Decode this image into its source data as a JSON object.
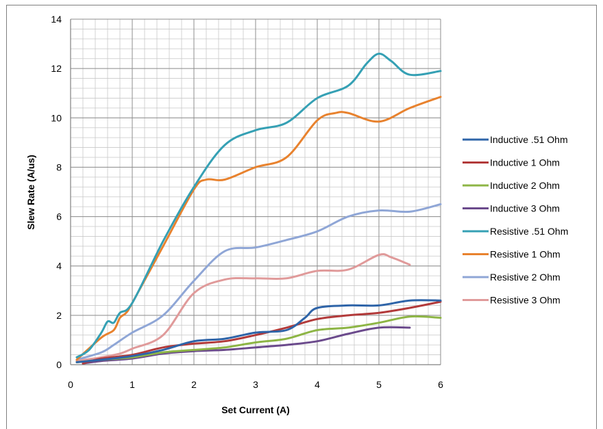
{
  "chart_data": {
    "type": "line",
    "title": "",
    "xlabel": "Set Current (A)",
    "ylabel": "Slew Rate (A/us)",
    "xlim": [
      0,
      6
    ],
    "ylim": [
      0,
      14
    ],
    "x_ticks": [
      "0",
      "1",
      "2",
      "3",
      "4",
      "5",
      "6"
    ],
    "y_ticks": [
      "0",
      "2",
      "4",
      "6",
      "8",
      "10",
      "12",
      "14"
    ],
    "grid": true,
    "legend_position": "right",
    "series": [
      {
        "name": "Inductive .51 Ohm",
        "color": "#2e64a8",
        "points": [
          [
            0.1,
            0.1
          ],
          [
            0.5,
            0.2
          ],
          [
            1,
            0.35
          ],
          [
            1.5,
            0.6
          ],
          [
            2,
            0.95
          ],
          [
            2.5,
            1.05
          ],
          [
            3,
            1.3
          ],
          [
            3.5,
            1.4
          ],
          [
            3.8,
            1.9
          ],
          [
            4,
            2.3
          ],
          [
            4.5,
            2.4
          ],
          [
            5,
            2.4
          ],
          [
            5.5,
            2.6
          ],
          [
            6,
            2.6
          ]
        ]
      },
      {
        "name": "Inductive 1 Ohm",
        "color": "#b23a3a",
        "points": [
          [
            0.2,
            0.05
          ],
          [
            0.5,
            0.25
          ],
          [
            1,
            0.4
          ],
          [
            1.5,
            0.7
          ],
          [
            2,
            0.85
          ],
          [
            2.5,
            0.95
          ],
          [
            3,
            1.2
          ],
          [
            3.5,
            1.5
          ],
          [
            4,
            1.85
          ],
          [
            4.5,
            2.0
          ],
          [
            5,
            2.1
          ],
          [
            5.5,
            2.3
          ],
          [
            6,
            2.55
          ]
        ]
      },
      {
        "name": "Inductive 2 Ohm",
        "color": "#8db545",
        "points": [
          [
            0.1,
            0.1
          ],
          [
            0.5,
            0.2
          ],
          [
            1,
            0.3
          ],
          [
            1.5,
            0.5
          ],
          [
            2,
            0.6
          ],
          [
            2.5,
            0.7
          ],
          [
            3,
            0.9
          ],
          [
            3.5,
            1.05
          ],
          [
            4,
            1.4
          ],
          [
            4.5,
            1.5
          ],
          [
            5,
            1.7
          ],
          [
            5.5,
            1.95
          ],
          [
            6,
            1.9
          ]
        ]
      },
      {
        "name": "Inductive 3 Ohm",
        "color": "#6b4a8c",
        "points": [
          [
            0.2,
            0.05
          ],
          [
            0.5,
            0.15
          ],
          [
            1,
            0.25
          ],
          [
            1.5,
            0.45
          ],
          [
            2,
            0.55
          ],
          [
            2.5,
            0.6
          ],
          [
            3,
            0.7
          ],
          [
            3.5,
            0.8
          ],
          [
            4,
            0.95
          ],
          [
            4.5,
            1.25
          ],
          [
            5,
            1.5
          ],
          [
            5.5,
            1.5
          ]
        ]
      },
      {
        "name": "Resistive .51 Ohm",
        "color": "#35a0b4",
        "points": [
          [
            0.1,
            0.3
          ],
          [
            0.3,
            0.6
          ],
          [
            0.5,
            1.3
          ],
          [
            0.6,
            1.75
          ],
          [
            0.7,
            1.7
          ],
          [
            0.8,
            2.1
          ],
          [
            1,
            2.5
          ],
          [
            1.5,
            5.0
          ],
          [
            2,
            7.2
          ],
          [
            2.5,
            8.9
          ],
          [
            3,
            9.5
          ],
          [
            3.5,
            9.8
          ],
          [
            4,
            10.8
          ],
          [
            4.5,
            11.3
          ],
          [
            4.8,
            12.2
          ],
          [
            5,
            12.6
          ],
          [
            5.2,
            12.3
          ],
          [
            5.5,
            11.75
          ],
          [
            6,
            11.9
          ]
        ]
      },
      {
        "name": "Resistive 1 Ohm",
        "color": "#e8822e",
        "points": [
          [
            0.1,
            0.2
          ],
          [
            0.5,
            1.1
          ],
          [
            0.7,
            1.4
          ],
          [
            0.8,
            1.9
          ],
          [
            0.9,
            2.1
          ],
          [
            1,
            2.5
          ],
          [
            1.5,
            4.8
          ],
          [
            2,
            7.1
          ],
          [
            2.2,
            7.5
          ],
          [
            2.5,
            7.5
          ],
          [
            3,
            8.0
          ],
          [
            3.5,
            8.4
          ],
          [
            4,
            9.9
          ],
          [
            4.3,
            10.2
          ],
          [
            4.5,
            10.2
          ],
          [
            5,
            9.85
          ],
          [
            5.5,
            10.4
          ],
          [
            6,
            10.85
          ]
        ]
      },
      {
        "name": "Resistive 2 Ohm",
        "color": "#8fa6d6",
        "points": [
          [
            0.1,
            0.2
          ],
          [
            0.5,
            0.5
          ],
          [
            0.7,
            0.8
          ],
          [
            1,
            1.3
          ],
          [
            1.5,
            2.0
          ],
          [
            2,
            3.4
          ],
          [
            2.5,
            4.6
          ],
          [
            3,
            4.75
          ],
          [
            3.5,
            5.05
          ],
          [
            4,
            5.4
          ],
          [
            4.5,
            6.0
          ],
          [
            5,
            6.25
          ],
          [
            5.5,
            6.2
          ],
          [
            6,
            6.5
          ]
        ]
      },
      {
        "name": "Resistive 3 Ohm",
        "color": "#e09a9a",
        "points": [
          [
            0.1,
            0.15
          ],
          [
            0.5,
            0.3
          ],
          [
            0.8,
            0.45
          ],
          [
            1,
            0.65
          ],
          [
            1.5,
            1.2
          ],
          [
            2,
            2.9
          ],
          [
            2.5,
            3.45
          ],
          [
            3,
            3.5
          ],
          [
            3.5,
            3.5
          ],
          [
            4,
            3.8
          ],
          [
            4.5,
            3.85
          ],
          [
            5,
            4.45
          ],
          [
            5.2,
            4.35
          ],
          [
            5.5,
            4.05
          ]
        ]
      }
    ]
  }
}
